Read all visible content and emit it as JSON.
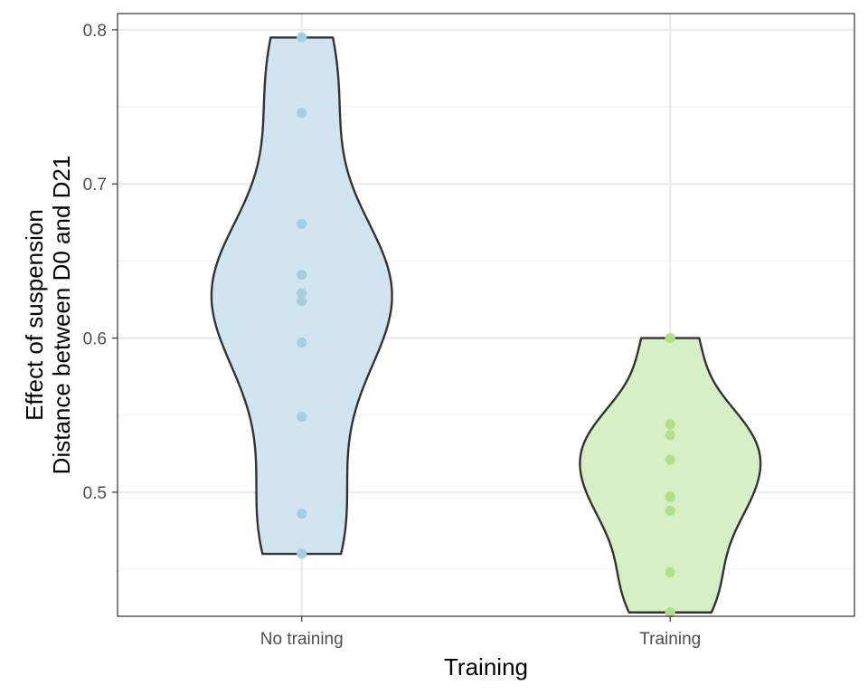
{
  "chart_data": {
    "type": "violin",
    "xlabel": "Training",
    "ylabel_lines": [
      "Effect of suspension",
      "Distance between D0 and D21"
    ],
    "ylim": [
      0.4195,
      0.8105
    ],
    "yticks": [
      0.5,
      0.6,
      0.7,
      0.8
    ],
    "ytick_labels": [
      "0.5",
      "0.6",
      "0.7",
      "0.8"
    ],
    "categories": [
      "No training",
      "Training"
    ],
    "grid": true,
    "legend": "none",
    "series": [
      {
        "category": "No training",
        "fill": "#d1e5f1",
        "point_color": "#a6cee3",
        "points": [
          0.795,
          0.746,
          0.674,
          0.641,
          0.629,
          0.624,
          0.597,
          0.549,
          0.486,
          0.46
        ]
      },
      {
        "category": "Training",
        "fill": "#d6efc4",
        "point_color": "#b2df8a",
        "points": [
          0.6,
          0.544,
          0.537,
          0.521,
          0.497,
          0.488,
          0.448,
          0.422
        ]
      }
    ],
    "colors": {
      "outline": "#333333",
      "panel_border": "#333333",
      "grid_major": "#ebebeb",
      "grid_minor": "#f2f2f2"
    }
  }
}
